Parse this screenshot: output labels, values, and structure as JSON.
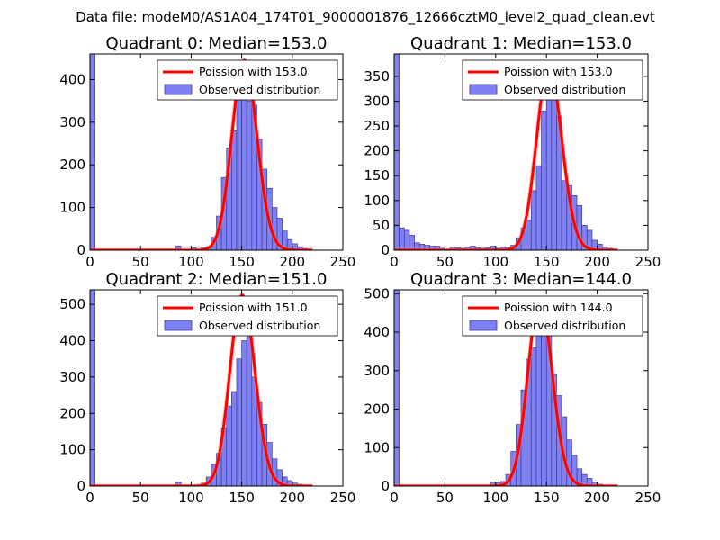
{
  "figure": {
    "suptitle": "Data file: modeM0/AS1A04_174T01_9000001876_12666cztM0_level2_quad_clean.evt",
    "colors": {
      "bar_fill": "#8080f5",
      "bar_edge": "#3b3b8c",
      "poisson_line": "#ff0000",
      "poisson_line_faded": "#f08080"
    }
  },
  "chart_data": [
    {
      "type": "bar",
      "title": "Quadrant 0: Median=153.0",
      "xlim": [
        0,
        250
      ],
      "ylim": [
        0,
        460
      ],
      "xticks": [
        "0",
        "50",
        "100",
        "150",
        "200",
        "250"
      ],
      "yticks": [
        "0",
        "100",
        "200",
        "300",
        "400"
      ],
      "bin_width": 5,
      "bins": [
        [
          0,
          460
        ],
        [
          85,
          10
        ],
        [
          100,
          6
        ],
        [
          110,
          6
        ],
        [
          115,
          8
        ],
        [
          120,
          30
        ],
        [
          125,
          80
        ],
        [
          130,
          170
        ],
        [
          135,
          240
        ],
        [
          140,
          280
        ],
        [
          145,
          380
        ],
        [
          150,
          390
        ],
        [
          155,
          350
        ],
        [
          160,
          340
        ],
        [
          165,
          260
        ],
        [
          170,
          190
        ],
        [
          175,
          145
        ],
        [
          180,
          100
        ],
        [
          185,
          75
        ],
        [
          190,
          45
        ],
        [
          195,
          25
        ],
        [
          200,
          15
        ],
        [
          205,
          8
        ],
        [
          210,
          4
        ]
      ],
      "poisson_mean": 153.0,
      "poisson_peak": 445,
      "legend": [
        "Poission with 153.0",
        "Observed distribution"
      ]
    },
    {
      "type": "bar",
      "title": "Quadrant 1: Median=153.0",
      "xlim": [
        0,
        250
      ],
      "ylim": [
        0,
        395
      ],
      "xticks": [
        "0",
        "50",
        "100",
        "150",
        "200",
        "250"
      ],
      "yticks": [
        "0",
        "50",
        "100",
        "150",
        "200",
        "250",
        "300",
        "350"
      ],
      "bin_width": 5,
      "bins": [
        [
          0,
          395
        ],
        [
          5,
          45
        ],
        [
          10,
          40
        ],
        [
          15,
          30
        ],
        [
          20,
          15
        ],
        [
          25,
          12
        ],
        [
          30,
          10
        ],
        [
          35,
          8
        ],
        [
          40,
          8
        ],
        [
          45,
          4
        ],
        [
          55,
          6
        ],
        [
          60,
          5
        ],
        [
          65,
          4
        ],
        [
          70,
          6
        ],
        [
          75,
          8
        ],
        [
          80,
          5
        ],
        [
          85,
          4
        ],
        [
          90,
          5
        ],
        [
          95,
          8
        ],
        [
          100,
          4
        ],
        [
          105,
          6
        ],
        [
          110,
          5
        ],
        [
          115,
          10
        ],
        [
          120,
          25
        ],
        [
          125,
          45
        ],
        [
          130,
          60
        ],
        [
          135,
          120
        ],
        [
          140,
          170
        ],
        [
          145,
          280
        ],
        [
          150,
          310
        ],
        [
          155,
          350
        ],
        [
          160,
          270
        ],
        [
          165,
          140
        ],
        [
          170,
          130
        ],
        [
          175,
          110
        ],
        [
          180,
          90
        ],
        [
          185,
          50
        ],
        [
          190,
          40
        ],
        [
          195,
          20
        ],
        [
          200,
          12
        ],
        [
          205,
          6
        ],
        [
          210,
          4
        ]
      ],
      "poisson_mean": 153.0,
      "poisson_peak": 370,
      "legend": [
        "Poission with 153.0",
        "Observed distribution"
      ]
    },
    {
      "type": "bar",
      "title": "Quadrant 2: Median=151.0",
      "xlim": [
        0,
        250
      ],
      "ylim": [
        0,
        540
      ],
      "xticks": [
        "0",
        "50",
        "100",
        "150",
        "200",
        "250"
      ],
      "yticks": [
        "0",
        "100",
        "200",
        "300",
        "400",
        "500"
      ],
      "bin_width": 5,
      "bins": [
        [
          0,
          540
        ],
        [
          85,
          10
        ],
        [
          110,
          8
        ],
        [
          115,
          25
        ],
        [
          120,
          60
        ],
        [
          125,
          90
        ],
        [
          130,
          160
        ],
        [
          135,
          220
        ],
        [
          140,
          260
        ],
        [
          145,
          350
        ],
        [
          150,
          400
        ],
        [
          155,
          420
        ],
        [
          160,
          300
        ],
        [
          165,
          230
        ],
        [
          170,
          170
        ],
        [
          175,
          120
        ],
        [
          180,
          75
        ],
        [
          185,
          45
        ],
        [
          190,
          25
        ],
        [
          195,
          15
        ],
        [
          200,
          8
        ],
        [
          205,
          5
        ],
        [
          210,
          3
        ]
      ],
      "poisson_mean": 151.0,
      "poisson_peak": 525,
      "legend": [
        "Poission with 151.0",
        "Observed distribution"
      ]
    },
    {
      "type": "bar",
      "title": "Quadrant 3: Median=144.0",
      "xlim": [
        0,
        250
      ],
      "ylim": [
        0,
        510
      ],
      "xticks": [
        "0",
        "50",
        "100",
        "150",
        "200",
        "250"
      ],
      "yticks": [
        "0",
        "100",
        "200",
        "300",
        "400",
        "500"
      ],
      "bin_width": 5,
      "bins": [
        [
          0,
          510
        ],
        [
          95,
          10
        ],
        [
          100,
          8
        ],
        [
          105,
          12
        ],
        [
          110,
          30
        ],
        [
          115,
          90
        ],
        [
          120,
          160
        ],
        [
          125,
          250
        ],
        [
          130,
          330
        ],
        [
          135,
          360
        ],
        [
          140,
          440
        ],
        [
          145,
          480
        ],
        [
          150,
          400
        ],
        [
          155,
          290
        ],
        [
          160,
          235
        ],
        [
          165,
          180
        ],
        [
          170,
          120
        ],
        [
          175,
          80
        ],
        [
          180,
          45
        ],
        [
          185,
          30
        ],
        [
          190,
          20
        ],
        [
          195,
          10
        ],
        [
          200,
          5
        ]
      ],
      "poisson_mean": 144.0,
      "poisson_peak": 485,
      "legend": [
        "Poission with 144.0",
        "Observed distribution"
      ]
    }
  ]
}
